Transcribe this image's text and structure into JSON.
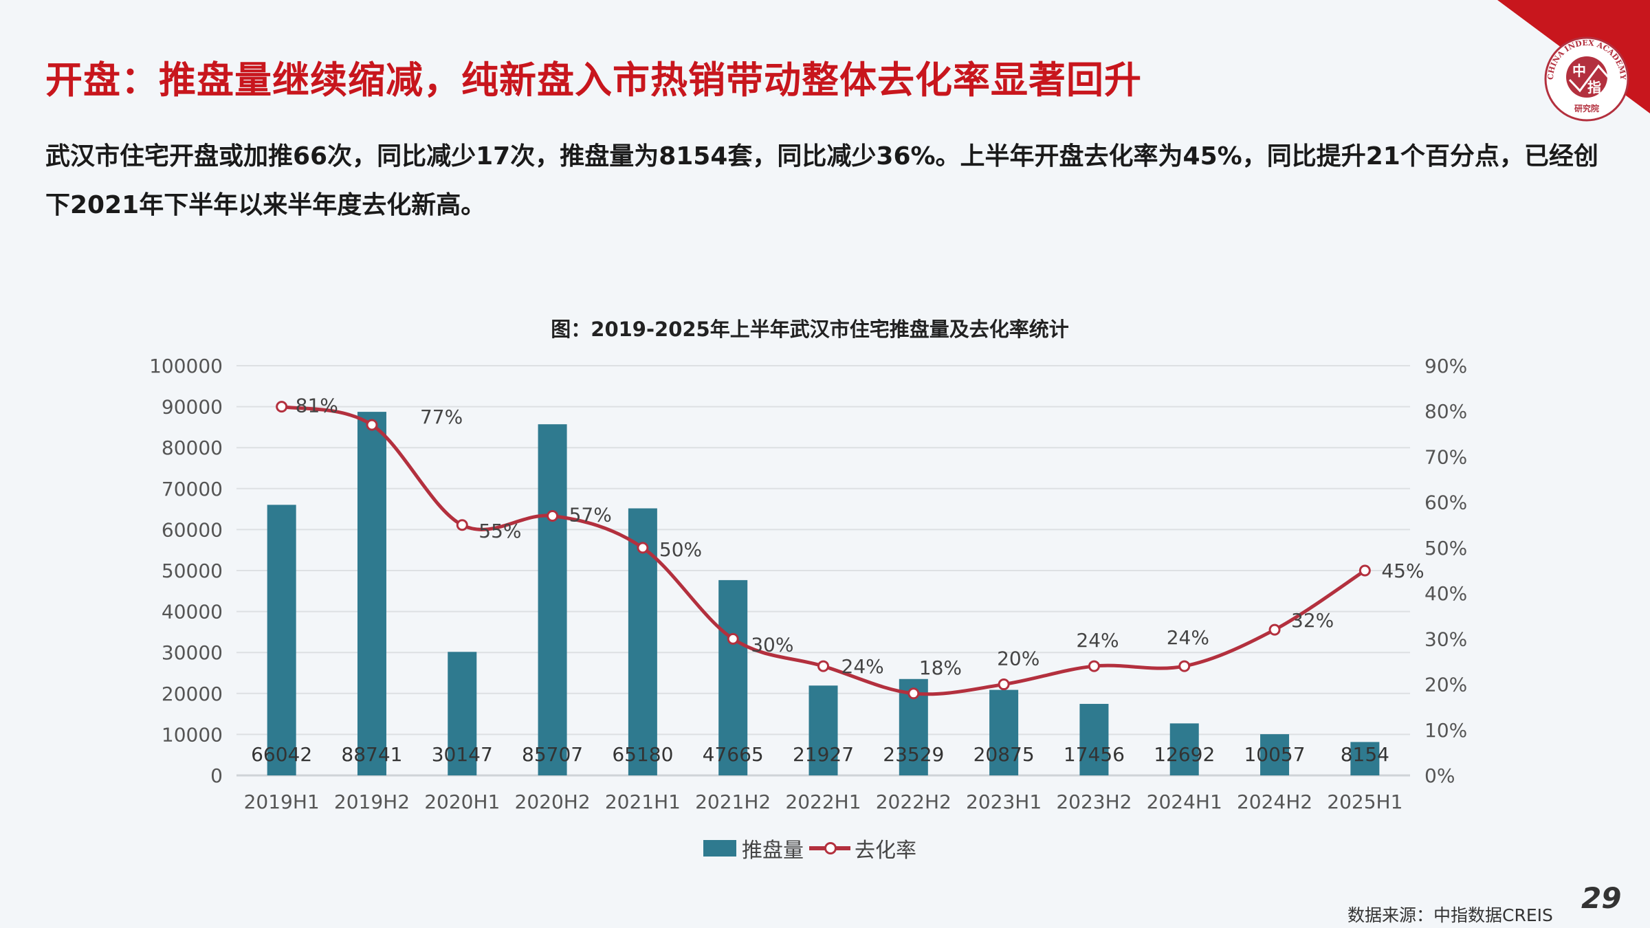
{
  "header": {
    "title": "开盘：推盘量继续缩减，纯新盘入市热销带动整体去化率显著回升",
    "summary": "武汉市住宅开盘或加推66次，同比减少17次，推盘量为8154套，同比减少36%。上半年开盘去化率为45%，同比提升21个百分点，已经创下2021年下半年以来半年度去化新高。"
  },
  "logo": {
    "ring_text": "CHINA INDEX ACADEMY",
    "char1": "中",
    "char2": "指",
    "bottom_text": "研究院"
  },
  "colors": {
    "title": "#c8161d",
    "bar": "#2f7a8f",
    "line": "#b3303e",
    "corner": "#c8161d"
  },
  "chart_data": {
    "type": "bar+line",
    "title": "图：2019-2025年上半年武汉市住宅推盘量及去化率统计",
    "categories": [
      "2019H1",
      "2019H2",
      "2020H1",
      "2020H2",
      "2021H1",
      "2021H2",
      "2022H1",
      "2022H2",
      "2023H1",
      "2023H2",
      "2024H1",
      "2024H2",
      "2025H1"
    ],
    "series": [
      {
        "name": "推盘量",
        "type": "bar",
        "axis": "left",
        "values": [
          66042,
          88741,
          30147,
          85707,
          65180,
          47665,
          21927,
          23529,
          20875,
          17456,
          12692,
          10057,
          8154
        ]
      },
      {
        "name": "去化率",
        "type": "line",
        "axis": "right",
        "values": [
          81,
          77,
          55,
          57,
          50,
          30,
          24,
          18,
          20,
          24,
          24,
          32,
          45
        ],
        "labels": [
          "81%",
          "77%",
          "55%",
          "57%",
          "50%",
          "30%",
          "24%",
          "18%",
          "20%",
          "24%",
          "24%",
          "32%",
          "45%"
        ]
      }
    ],
    "ylim_left": [
      0,
      100000
    ],
    "yticks_left": [
      "0",
      "10000",
      "20000",
      "30000",
      "40000",
      "50000",
      "60000",
      "70000",
      "80000",
      "90000",
      "100000"
    ],
    "ylim_right": [
      0,
      90
    ],
    "yticks_right": [
      "0%",
      "10%",
      "20%",
      "30%",
      "40%",
      "50%",
      "60%",
      "70%",
      "80%",
      "90%"
    ],
    "grid": true,
    "legend": "bottom"
  },
  "footer": {
    "source": "数据来源：中指数据CREIS",
    "page": "29"
  }
}
